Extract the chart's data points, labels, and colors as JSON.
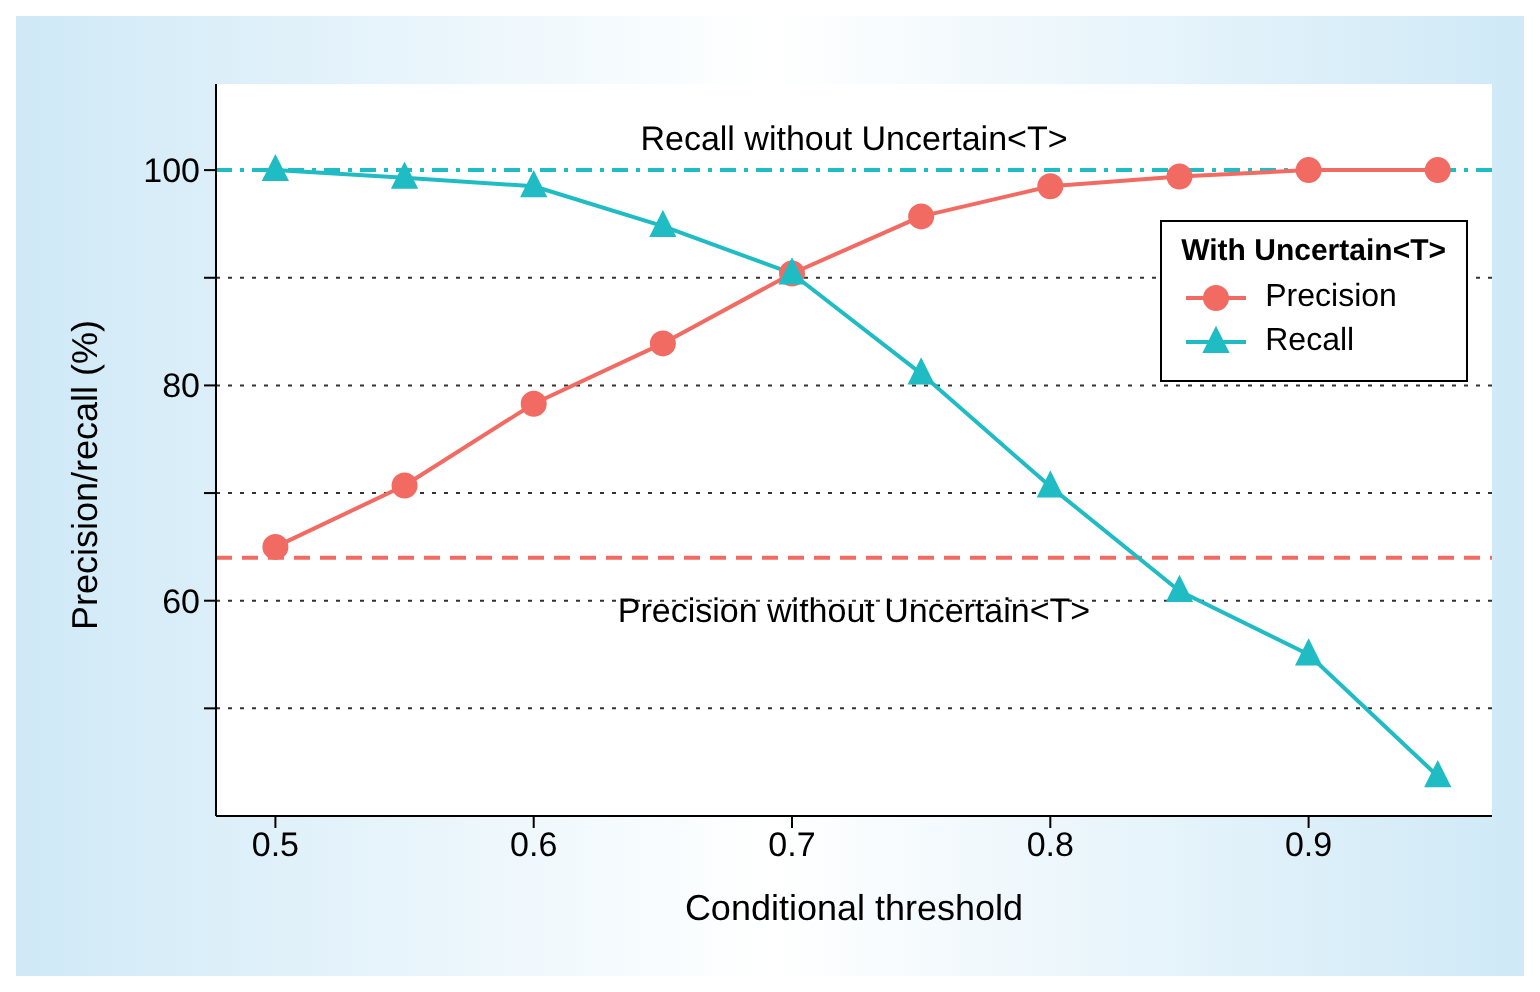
{
  "chart_data": {
    "type": "line",
    "xlabel": "Conditional threshold",
    "ylabel": "Precision/recall (%)",
    "legend_title": "With Uncertain<T>",
    "x": [
      0.5,
      0.55,
      0.6,
      0.65,
      0.7,
      0.75,
      0.8,
      0.85,
      0.9,
      0.95
    ],
    "series": [
      {
        "name": "Precision",
        "color": "#f26b63",
        "marker": "circle",
        "values": [
          65.0,
          70.7,
          78.3,
          83.9,
          90.4,
          95.7,
          98.5,
          99.4,
          100,
          100
        ]
      },
      {
        "name": "Recall",
        "color": "#1fbcc4",
        "marker": "triangle",
        "values": [
          100,
          99.3,
          98.5,
          94.8,
          90.4,
          81.1,
          70.6,
          60.9,
          55,
          43.7
        ]
      }
    ],
    "xlim": [
      0.477,
      0.971
    ],
    "xticks": [
      0.5,
      0.6,
      0.7,
      0.8,
      0.9
    ],
    "ylim": [
      40,
      108
    ],
    "yticks": [
      {
        "value": 50,
        "label": null
      },
      60,
      {
        "value": 70,
        "label": null
      },
      80,
      {
        "value": 90,
        "label": null
      },
      100
    ],
    "ref_lines": [
      {
        "axis": "y",
        "value": 100,
        "label": "Recall without Uncertain<T>",
        "color": "#1fbcc4",
        "line_style": "dashdot"
      },
      {
        "axis": "y",
        "value": 64,
        "label": "Precision without Uncertain<T>",
        "color": "#f26b63",
        "line_style": "dashed"
      }
    ],
    "grid": "y",
    "legend": "top right",
    "line_style": "solid"
  }
}
